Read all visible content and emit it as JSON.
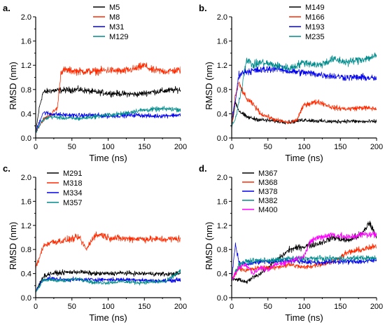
{
  "chart_data": [
    {
      "panel_label": "a.",
      "type": "line",
      "xlabel": "Time (ns)",
      "ylabel": "RMSD (nm)",
      "xlim": [
        0,
        200
      ],
      "ylim": [
        0.0,
        2.0
      ],
      "xticks": [
        0,
        50,
        100,
        150,
        200
      ],
      "yticks": [
        0.0,
        0.4,
        0.8,
        1.2,
        1.6,
        2.0
      ],
      "ytick_labels": [
        "0.0",
        "0.4",
        "0.8",
        "1.2",
        "1.6",
        "2.0"
      ],
      "legend_position": "top-center",
      "grid": false,
      "series": [
        {
          "name": "M5",
          "color": "#000000",
          "x": [
            0,
            5,
            10,
            20,
            40,
            60,
            80,
            100,
            120,
            140,
            160,
            180,
            200
          ],
          "y": [
            0.1,
            0.5,
            0.75,
            0.78,
            0.79,
            0.8,
            0.76,
            0.74,
            0.73,
            0.72,
            0.76,
            0.78,
            0.8
          ]
        },
        {
          "name": "M8",
          "color": "#ff2a00",
          "x": [
            0,
            5,
            10,
            20,
            30,
            35,
            40,
            60,
            80,
            100,
            120,
            140,
            150,
            160,
            180,
            200
          ],
          "y": [
            0.1,
            0.2,
            0.3,
            0.38,
            0.5,
            1.1,
            1.12,
            1.1,
            1.1,
            1.12,
            1.1,
            1.15,
            1.2,
            1.12,
            1.1,
            1.12
          ]
        },
        {
          "name": "M31",
          "color": "#0000ee",
          "x": [
            0,
            10,
            20,
            40,
            60,
            80,
            100,
            120,
            140,
            160,
            180,
            200
          ],
          "y": [
            0.1,
            0.42,
            0.4,
            0.38,
            0.37,
            0.38,
            0.36,
            0.37,
            0.38,
            0.36,
            0.37,
            0.38
          ]
        },
        {
          "name": "M129",
          "color": "#008b8b",
          "x": [
            0,
            10,
            20,
            40,
            60,
            80,
            100,
            120,
            140,
            160,
            180,
            200
          ],
          "y": [
            0.1,
            0.3,
            0.35,
            0.33,
            0.32,
            0.35,
            0.38,
            0.4,
            0.45,
            0.47,
            0.48,
            0.47
          ]
        }
      ]
    },
    {
      "panel_label": "b.",
      "type": "line",
      "xlabel": "Time (ns)",
      "ylabel": "RMSD (nm)",
      "xlim": [
        0,
        200
      ],
      "ylim": [
        0.0,
        2.0
      ],
      "xticks": [
        0,
        50,
        100,
        150,
        200
      ],
      "yticks": [
        0.0,
        0.4,
        0.8,
        1.2,
        1.6,
        2.0
      ],
      "ytick_labels": [
        "0.0",
        "0.4",
        "0.8",
        "1.2",
        "1.6",
        "2.0"
      ],
      "legend_position": "top-center",
      "grid": false,
      "series": [
        {
          "name": "M149",
          "color": "#000000",
          "x": [
            0,
            5,
            10,
            20,
            30,
            40,
            60,
            80,
            100,
            120,
            140,
            160,
            180,
            200
          ],
          "y": [
            0.15,
            0.6,
            0.45,
            0.35,
            0.32,
            0.3,
            0.28,
            0.26,
            0.3,
            0.28,
            0.27,
            0.28,
            0.27,
            0.27
          ]
        },
        {
          "name": "M166",
          "color": "#ff2a00",
          "x": [
            0,
            5,
            10,
            20,
            30,
            40,
            60,
            80,
            90,
            100,
            120,
            140,
            160,
            180,
            200
          ],
          "y": [
            0.2,
            0.7,
            0.9,
            0.65,
            0.55,
            0.4,
            0.3,
            0.25,
            0.3,
            0.55,
            0.6,
            0.5,
            0.48,
            0.5,
            0.48
          ]
        },
        {
          "name": "M193",
          "color": "#0000ee",
          "x": [
            0,
            5,
            10,
            20,
            40,
            60,
            80,
            100,
            120,
            140,
            160,
            180,
            200
          ],
          "y": [
            0.3,
            0.6,
            1.05,
            1.1,
            1.12,
            1.15,
            1.1,
            1.08,
            1.05,
            1.02,
            1.0,
            1.0,
            0.98
          ]
        },
        {
          "name": "M235",
          "color": "#008b8b",
          "x": [
            0,
            5,
            10,
            15,
            20,
            30,
            40,
            60,
            80,
            100,
            120,
            140,
            160,
            180,
            200
          ],
          "y": [
            0.2,
            0.3,
            0.6,
            0.9,
            1.3,
            1.2,
            1.25,
            1.2,
            1.15,
            1.25,
            1.2,
            1.3,
            1.25,
            1.3,
            1.35
          ]
        }
      ]
    },
    {
      "panel_label": "c.",
      "type": "line",
      "xlabel": "Time (ns)",
      "ylabel": "RMSD (nm)",
      "xlim": [
        0,
        200
      ],
      "ylim": [
        0.0,
        2.0
      ],
      "xticks": [
        0,
        50,
        100,
        150,
        200
      ],
      "yticks": [
        0.0,
        0.4,
        0.8,
        1.2,
        1.6,
        2.0
      ],
      "ytick_labels": [
        "0.0",
        "0.4",
        "0.8",
        "1.2",
        "1.6",
        "2.0"
      ],
      "legend_position": "top-left",
      "grid": false,
      "series": [
        {
          "name": "M291",
          "color": "#000000",
          "x": [
            0,
            10,
            20,
            40,
            60,
            80,
            100,
            120,
            140,
            160,
            180,
            200
          ],
          "y": [
            0.1,
            0.35,
            0.4,
            0.42,
            0.43,
            0.4,
            0.4,
            0.41,
            0.4,
            0.4,
            0.39,
            0.4
          ]
        },
        {
          "name": "M318",
          "color": "#ff2a00",
          "x": [
            0,
            5,
            10,
            20,
            40,
            60,
            70,
            80,
            90,
            100,
            120,
            140,
            160,
            180,
            200
          ],
          "y": [
            0.5,
            0.65,
            0.85,
            0.92,
            0.95,
            1.0,
            0.8,
            1.02,
            1.05,
            1.0,
            0.98,
            0.98,
            0.97,
            0.97,
            0.98
          ]
        },
        {
          "name": "M334",
          "color": "#0000ee",
          "x": [
            0,
            10,
            20,
            40,
            60,
            80,
            100,
            120,
            140,
            160,
            180,
            200
          ],
          "y": [
            0.1,
            0.3,
            0.32,
            0.3,
            0.3,
            0.3,
            0.3,
            0.3,
            0.3,
            0.28,
            0.28,
            0.3
          ]
        },
        {
          "name": "M357",
          "color": "#008b8b",
          "x": [
            0,
            10,
            20,
            40,
            60,
            80,
            100,
            120,
            140,
            160,
            180,
            200
          ],
          "y": [
            0.1,
            0.28,
            0.3,
            0.28,
            0.32,
            0.25,
            0.25,
            0.27,
            0.25,
            0.26,
            0.27,
            0.45
          ]
        }
      ]
    },
    {
      "panel_label": "d.",
      "type": "line",
      "xlabel": "Time (ns)",
      "ylabel": "RMSD (nm)",
      "xlim": [
        0,
        200
      ],
      "ylim": [
        0.0,
        2.0
      ],
      "xticks": [
        0,
        50,
        100,
        150,
        200
      ],
      "yticks": [
        0.0,
        0.4,
        0.8,
        1.2,
        1.6,
        2.0
      ],
      "ytick_labels": [
        "0.0",
        "0.4",
        "0.8",
        "1.2",
        "1.6",
        "2.0"
      ],
      "legend_position": "top-left",
      "grid": false,
      "series": [
        {
          "name": "M367",
          "color": "#000000",
          "x": [
            0,
            10,
            20,
            30,
            40,
            50,
            60,
            80,
            100,
            120,
            140,
            160,
            180,
            190,
            200
          ],
          "y": [
            0.3,
            0.3,
            0.25,
            0.35,
            0.4,
            0.5,
            0.6,
            0.8,
            0.85,
            0.9,
            1.0,
            0.95,
            1.05,
            1.25,
            1.0
          ]
        },
        {
          "name": "M368",
          "color": "#ff2a00",
          "x": [
            0,
            10,
            20,
            40,
            60,
            80,
            100,
            120,
            140,
            160,
            180,
            200
          ],
          "y": [
            0.3,
            0.5,
            0.45,
            0.5,
            0.5,
            0.55,
            0.5,
            0.55,
            0.6,
            0.75,
            0.8,
            0.85
          ]
        },
        {
          "name": "M378",
          "color": "#0000ee",
          "x": [
            0,
            5,
            10,
            20,
            40,
            60,
            80,
            100,
            120,
            140,
            160,
            180,
            200
          ],
          "y": [
            0.3,
            0.9,
            0.6,
            0.55,
            0.6,
            0.6,
            0.62,
            0.6,
            0.58,
            0.6,
            0.6,
            0.6,
            0.62
          ]
        },
        {
          "name": "M382",
          "color": "#008b8b",
          "x": [
            0,
            10,
            20,
            40,
            60,
            80,
            100,
            120,
            140,
            160,
            180,
            200
          ],
          "y": [
            0.3,
            0.55,
            0.6,
            0.62,
            0.62,
            0.65,
            0.65,
            0.65,
            0.65,
            0.65,
            0.66,
            0.65
          ]
        },
        {
          "name": "M400",
          "color": "#ff00ff",
          "x": [
            0,
            10,
            20,
            30,
            40,
            50,
            60,
            80,
            100,
            110,
            120,
            140,
            160,
            180,
            200
          ],
          "y": [
            0.3,
            0.5,
            0.55,
            0.4,
            0.5,
            0.45,
            0.55,
            0.6,
            0.7,
            0.95,
            1.0,
            1.05,
            1.0,
            1.05,
            1.05
          ]
        }
      ]
    }
  ]
}
